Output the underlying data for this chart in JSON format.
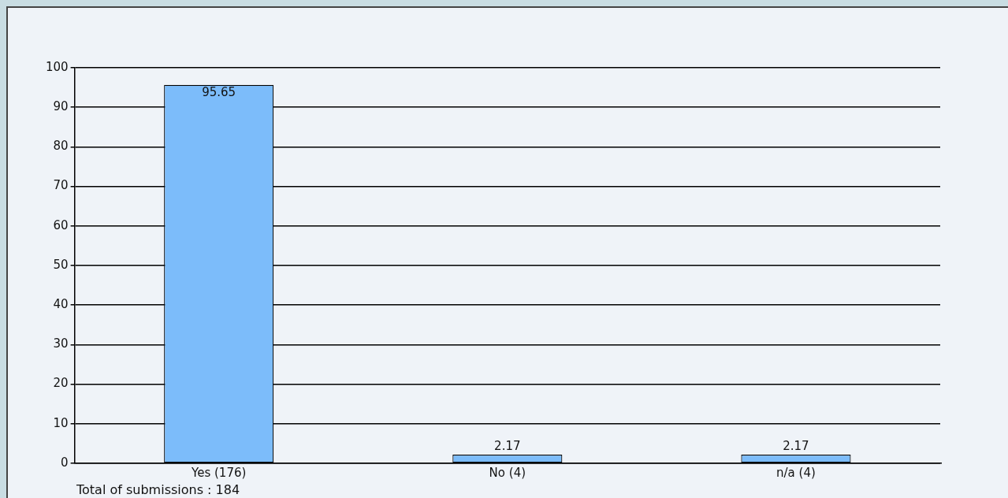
{
  "chart_data": {
    "type": "bar",
    "categories": [
      "Yes (176)",
      "No (4)",
      "n/a (4)"
    ],
    "values": [
      95.65,
      2.17,
      2.17
    ],
    "color": "#7cbcfa",
    "ylim": [
      0,
      100
    ],
    "yticks": [
      0,
      10,
      20,
      30,
      40,
      50,
      60,
      70,
      80,
      90,
      100
    ],
    "grid": "y",
    "data_labels": true,
    "legend": false,
    "annotations": [
      "Total of submissions : 184"
    ]
  }
}
